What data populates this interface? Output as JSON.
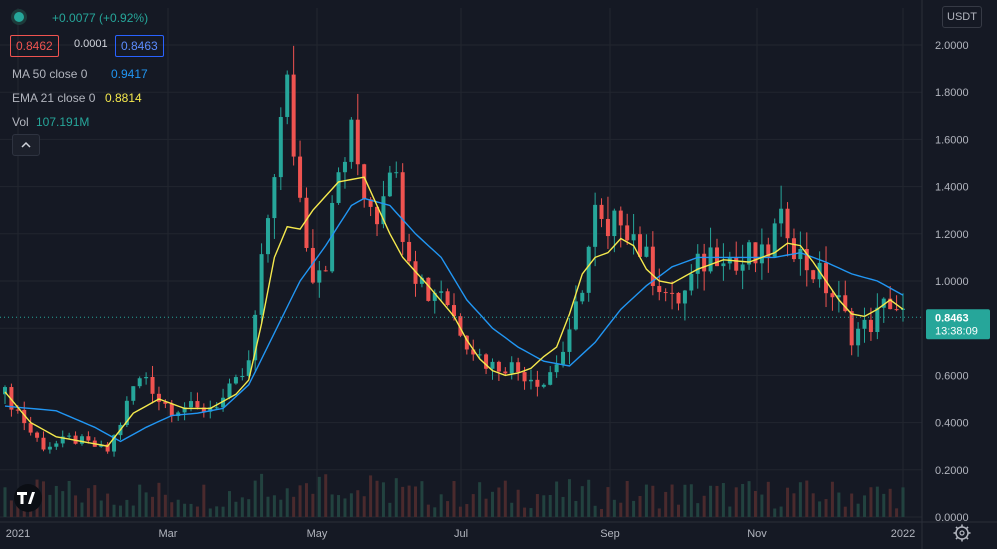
{
  "header": {
    "change": "+0.0077 (+0.92%)",
    "bid": "0.8462",
    "spread": "0.0001",
    "ask": "0.8463"
  },
  "indicators": {
    "ma_label": "MA 50 close 0",
    "ma_value": "0.9417",
    "ema_label": "EMA 21 close 0",
    "ema_value": "0.8814",
    "vol_label": "Vol",
    "vol_value": "107.191M"
  },
  "currency": "USDT",
  "price_tag": {
    "price": "0.8463",
    "countdown": "13:38:09"
  },
  "icons": {
    "collapse": "chevron-up-icon",
    "logo": "tradingview-logo",
    "settings": "gear-icon",
    "status": "status-dot-icon"
  },
  "colors": {
    "up": "#26a69a",
    "down": "#ef5350",
    "ma": "#2196f3",
    "ema": "#f5e94d",
    "volume": "#4a4f5c",
    "bg": "#151924",
    "grid": "#22262f",
    "text": "#d1d4dc"
  },
  "chart_data": {
    "type": "candlestick",
    "y_ticks": [
      "2.0000",
      "1.8000",
      "1.6000",
      "1.4000",
      "1.2000",
      "1.0000",
      "0.8000",
      "0.6000",
      "0.4000",
      "0.2000",
      "0.0000"
    ],
    "x_ticks": [
      "2021",
      "Mar",
      "May",
      "Jul",
      "Sep",
      "Nov",
      "2022"
    ],
    "ylim": [
      0,
      2.0
    ],
    "last_price": 0.8463,
    "close_path": [
      [
        0,
        0.52
      ],
      [
        2,
        0.45
      ],
      [
        4,
        0.36
      ],
      [
        6,
        0.3
      ],
      [
        8,
        0.31
      ],
      [
        10,
        0.33
      ],
      [
        12,
        0.32
      ],
      [
        14,
        0.3
      ],
      [
        16,
        0.28
      ],
      [
        18,
        0.4
      ],
      [
        20,
        0.55
      ],
      [
        22,
        0.6
      ],
      [
        24,
        0.5
      ],
      [
        26,
        0.46
      ],
      [
        28,
        0.47
      ],
      [
        30,
        0.45
      ],
      [
        32,
        0.47
      ],
      [
        34,
        0.5
      ],
      [
        36,
        0.56
      ],
      [
        38,
        0.64
      ],
      [
        40,
        1.05
      ],
      [
        42,
        1.5
      ],
      [
        44,
        1.8
      ],
      [
        46,
        1.35
      ],
      [
        48,
        1.05
      ],
      [
        50,
        1.1
      ],
      [
        52,
        1.45
      ],
      [
        54,
        1.6
      ],
      [
        56,
        1.4
      ],
      [
        58,
        1.3
      ],
      [
        60,
        1.55
      ],
      [
        62,
        1.25
      ],
      [
        64,
        1.05
      ],
      [
        66,
        0.95
      ],
      [
        68,
        0.98
      ],
      [
        70,
        0.85
      ],
      [
        72,
        0.76
      ],
      [
        74,
        0.68
      ],
      [
        76,
        0.64
      ],
      [
        78,
        0.65
      ],
      [
        80,
        0.62
      ],
      [
        82,
        0.6
      ],
      [
        84,
        0.57
      ],
      [
        86,
        0.66
      ],
      [
        88,
        0.75
      ],
      [
        90,
        1.0
      ],
      [
        92,
        1.28
      ],
      [
        94,
        1.15
      ],
      [
        96,
        1.3
      ],
      [
        98,
        1.2
      ],
      [
        100,
        1.08
      ],
      [
        102,
        1.0
      ],
      [
        104,
        0.9
      ],
      [
        106,
        0.95
      ],
      [
        108,
        1.05
      ],
      [
        110,
        1.12
      ],
      [
        112,
        1.15
      ],
      [
        114,
        1.05
      ],
      [
        116,
        1.1
      ],
      [
        118,
        1.08
      ],
      [
        120,
        1.2
      ],
      [
        122,
        1.25
      ],
      [
        124,
        1.1
      ],
      [
        126,
        1.05
      ],
      [
        128,
        0.98
      ],
      [
        130,
        0.9
      ],
      [
        132,
        0.78
      ],
      [
        134,
        0.8
      ],
      [
        136,
        0.85
      ],
      [
        138,
        0.92
      ],
      [
        140,
        0.85
      ]
    ],
    "ma50_path": [
      [
        0,
        0.47
      ],
      [
        8,
        0.45
      ],
      [
        14,
        0.38
      ],
      [
        18,
        0.32
      ],
      [
        22,
        0.38
      ],
      [
        26,
        0.43
      ],
      [
        30,
        0.44
      ],
      [
        34,
        0.46
      ],
      [
        38,
        0.56
      ],
      [
        42,
        0.78
      ],
      [
        46,
        1.0
      ],
      [
        50,
        1.15
      ],
      [
        54,
        1.32
      ],
      [
        56,
        1.35
      ],
      [
        60,
        1.32
      ],
      [
        64,
        1.2
      ],
      [
        68,
        1.1
      ],
      [
        72,
        0.92
      ],
      [
        76,
        0.8
      ],
      [
        80,
        0.72
      ],
      [
        84,
        0.66
      ],
      [
        88,
        0.64
      ],
      [
        92,
        0.74
      ],
      [
        96,
        0.88
      ],
      [
        100,
        0.98
      ],
      [
        104,
        1.06
      ],
      [
        108,
        1.1
      ],
      [
        112,
        1.1
      ],
      [
        116,
        1.1
      ],
      [
        120,
        1.1
      ],
      [
        124,
        1.12
      ],
      [
        128,
        1.08
      ],
      [
        132,
        1.03
      ],
      [
        136,
        1.0
      ],
      [
        140,
        0.94
      ]
    ],
    "ema21_path": [
      [
        0,
        0.53
      ],
      [
        4,
        0.4
      ],
      [
        8,
        0.34
      ],
      [
        12,
        0.32
      ],
      [
        16,
        0.3
      ],
      [
        20,
        0.44
      ],
      [
        24,
        0.5
      ],
      [
        28,
        0.46
      ],
      [
        32,
        0.46
      ],
      [
        36,
        0.52
      ],
      [
        38,
        0.58
      ],
      [
        40,
        0.82
      ],
      [
        42,
        1.1
      ],
      [
        44,
        1.23
      ],
      [
        46,
        1.22
      ],
      [
        48,
        1.3
      ],
      [
        52,
        1.42
      ],
      [
        56,
        1.44
      ],
      [
        58,
        1.32
      ],
      [
        60,
        1.2
      ],
      [
        62,
        1.1
      ],
      [
        66,
        0.98
      ],
      [
        70,
        0.85
      ],
      [
        72,
        0.75
      ],
      [
        74,
        0.67
      ],
      [
        76,
        0.62
      ],
      [
        78,
        0.6
      ],
      [
        80,
        0.61
      ],
      [
        82,
        0.63
      ],
      [
        84,
        0.68
      ],
      [
        86,
        0.72
      ],
      [
        88,
        0.86
      ],
      [
        90,
        1.03
      ],
      [
        92,
        1.1
      ],
      [
        94,
        1.12
      ],
      [
        96,
        1.18
      ],
      [
        98,
        1.15
      ],
      [
        100,
        1.05
      ],
      [
        102,
        1.0
      ],
      [
        104,
        0.99
      ],
      [
        106,
        1.02
      ],
      [
        108,
        1.05
      ],
      [
        112,
        1.09
      ],
      [
        116,
        1.08
      ],
      [
        120,
        1.12
      ],
      [
        122,
        1.16
      ],
      [
        124,
        1.15
      ],
      [
        126,
        1.08
      ],
      [
        128,
        1.0
      ],
      [
        130,
        0.92
      ],
      [
        132,
        0.86
      ],
      [
        134,
        0.85
      ],
      [
        136,
        0.88
      ],
      [
        138,
        0.92
      ],
      [
        140,
        0.88
      ]
    ]
  }
}
